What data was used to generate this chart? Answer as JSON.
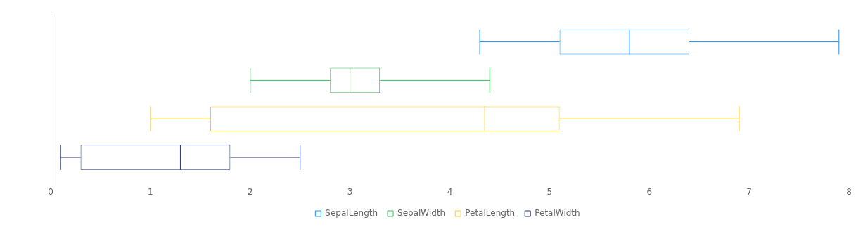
{
  "chart_data": {
    "type": "box",
    "orientation": "horizontal",
    "categories": [
      null
    ],
    "xlim": [
      0,
      8
    ],
    "xticks": [
      0,
      1,
      2,
      3,
      4,
      5,
      6,
      7,
      8
    ],
    "grid": false,
    "legend": "bottom",
    "series": [
      {
        "name": "SepalLength",
        "color": "#1890ff",
        "boxes": [
          {
            "low": 4.3,
            "q1": 5.1,
            "median": 5.8,
            "q3": 6.4,
            "high": 7.9
          }
        ]
      },
      {
        "name": "SepalWidth",
        "color": "#2fc25b",
        "boxes": [
          {
            "low": 2.0,
            "q1": 2.8,
            "median": 3.0,
            "q3": 3.3,
            "high": 4.4
          }
        ]
      },
      {
        "name": "PetalLength",
        "color": "#facc14",
        "boxes": [
          {
            "low": 1.0,
            "q1": 1.6,
            "median": 4.35,
            "q3": 5.1,
            "high": 6.9
          }
        ]
      },
      {
        "name": "PetalWidth",
        "color": "#223273",
        "boxes": [
          {
            "low": 0.1,
            "q1": 0.3,
            "median": 1.3,
            "q3": 1.8,
            "high": 2.5
          }
        ]
      }
    ]
  }
}
